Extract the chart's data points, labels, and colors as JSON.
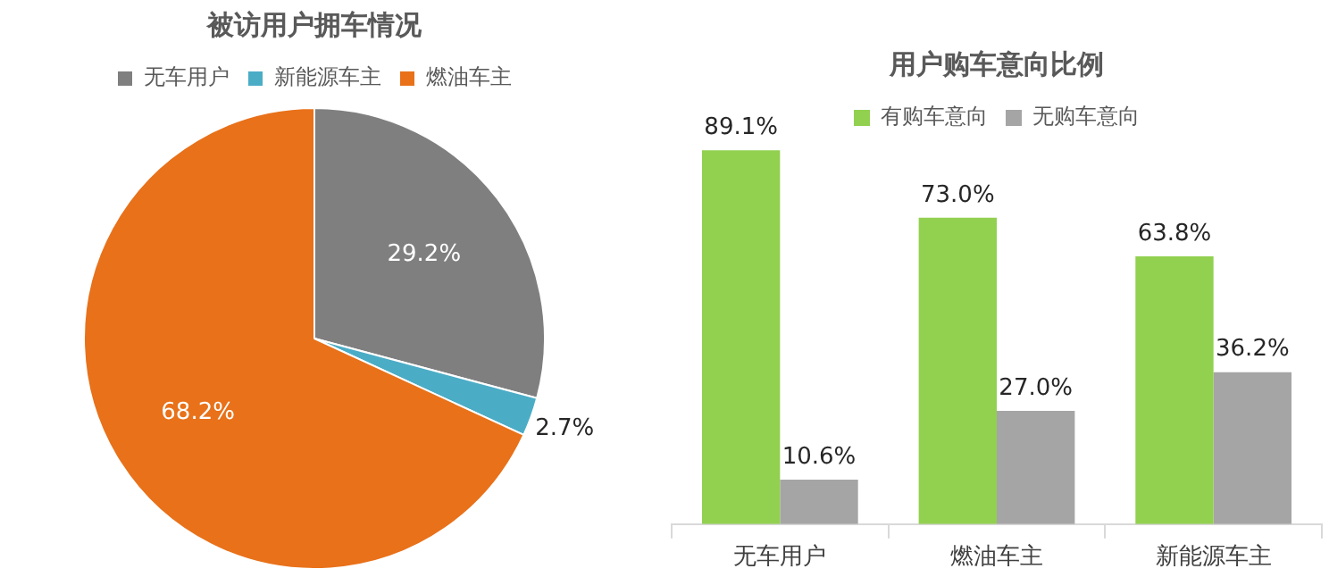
{
  "chart_data": [
    {
      "type": "pie",
      "title": "被访用户拥车情况",
      "categories": [
        "无车用户",
        "新能源车主",
        "燃油车主"
      ],
      "values": [
        29.2,
        2.7,
        68.2
      ],
      "colors": [
        "#7f7f7f",
        "#4bacc6",
        "#e8711a"
      ],
      "value_labels": [
        "29.2%",
        "2.7%",
        "68.2%"
      ],
      "legend": "top"
    },
    {
      "type": "bar",
      "title": "用户购车意向比例",
      "categories": [
        "无车用户",
        "燃油车主",
        "新能源车主"
      ],
      "legend": "top",
      "grid": false,
      "series": [
        {
          "name": "有购车意向",
          "color": "#92d050",
          "values": [
            89.1,
            73.0,
            63.8
          ],
          "value_labels": [
            "89.1%",
            "73.0%",
            "63.8%"
          ]
        },
        {
          "name": "无购车意向",
          "color": "#a5a5a5",
          "values": [
            10.6,
            27.0,
            36.2
          ],
          "value_labels": [
            "10.6%",
            "27.0%",
            "36.2%"
          ]
        }
      ]
    }
  ]
}
